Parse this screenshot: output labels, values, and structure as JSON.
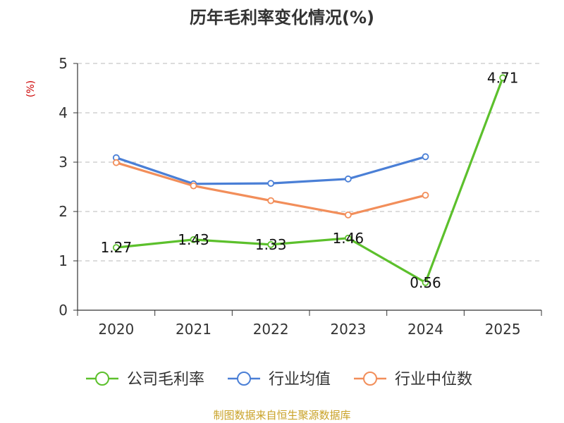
{
  "chart_data": {
    "type": "line",
    "title": "历年毛利率变化情况(%)",
    "ylabel": "(%)",
    "ylabel_color": "#cc0000",
    "categories": [
      "2020",
      "2021",
      "2022",
      "2023",
      "2024",
      "2025"
    ],
    "ylim": [
      0,
      5
    ],
    "yticks": [
      "0",
      "1",
      "2",
      "3",
      "4",
      "5"
    ],
    "grid": true,
    "legend_position": "bottom",
    "series": [
      {
        "name": "公司毛利率",
        "color": "#5cc02c",
        "values": [
          1.27,
          1.43,
          1.33,
          1.46,
          0.56,
          4.71
        ],
        "labels": [
          "1.27",
          "1.43",
          "1.33",
          "1.46",
          "0.56",
          "4.71"
        ]
      },
      {
        "name": "行业均值",
        "color": "#4a7fd6",
        "values": [
          3.09,
          2.56,
          2.57,
          2.66,
          3.11,
          null
        ],
        "labels": null
      },
      {
        "name": "行业中位数",
        "color": "#f28e5a",
        "values": [
          2.99,
          2.52,
          2.22,
          1.93,
          2.33,
          null
        ],
        "labels": null
      }
    ]
  },
  "source": {
    "text": "制图数据来自恒生聚源数据库",
    "color": "#c9a227"
  }
}
